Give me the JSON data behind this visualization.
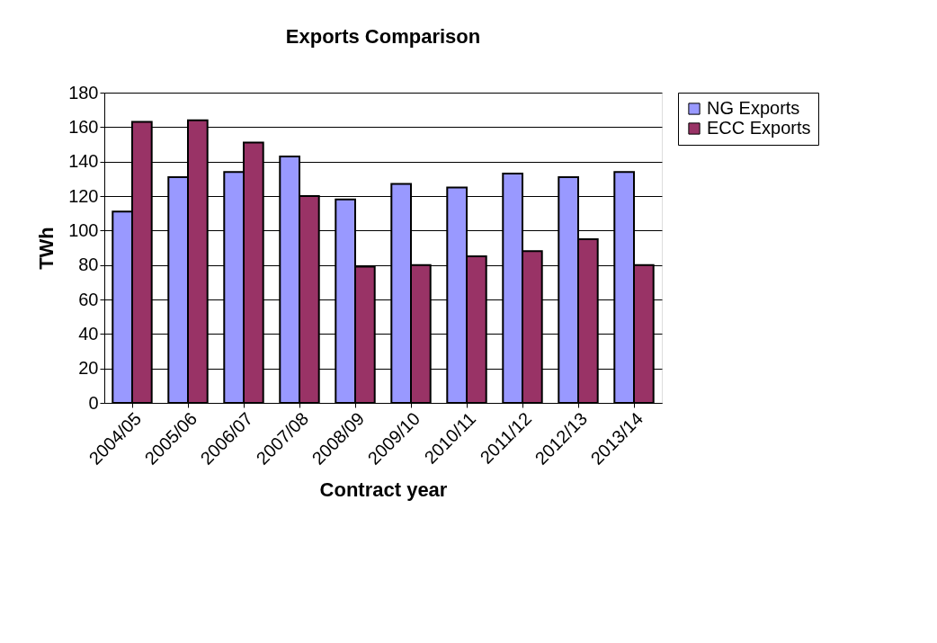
{
  "chart_data": {
    "type": "bar",
    "title": "Exports Comparison",
    "xlabel": "Contract year",
    "ylabel": "TWh",
    "categories": [
      "2004/05",
      "2005/06",
      "2006/07",
      "2007/08",
      "2008/09",
      "2009/10",
      "2010/11",
      "2011/12",
      "2012/13",
      "2013/14"
    ],
    "series": [
      {
        "name": "NG Exports",
        "color": "#9999ff",
        "values": [
          111,
          131,
          134,
          143,
          118,
          127,
          125,
          133,
          131,
          134
        ]
      },
      {
        "name": "ECC Exports",
        "color": "#993366",
        "values": [
          163,
          164,
          151,
          120,
          79,
          80,
          85,
          88,
          95,
          80
        ]
      }
    ],
    "ylim": [
      0,
      180
    ],
    "yticks": [
      0,
      20,
      40,
      60,
      80,
      100,
      120,
      140,
      160,
      180
    ],
    "grid": "y",
    "legend": "right"
  }
}
